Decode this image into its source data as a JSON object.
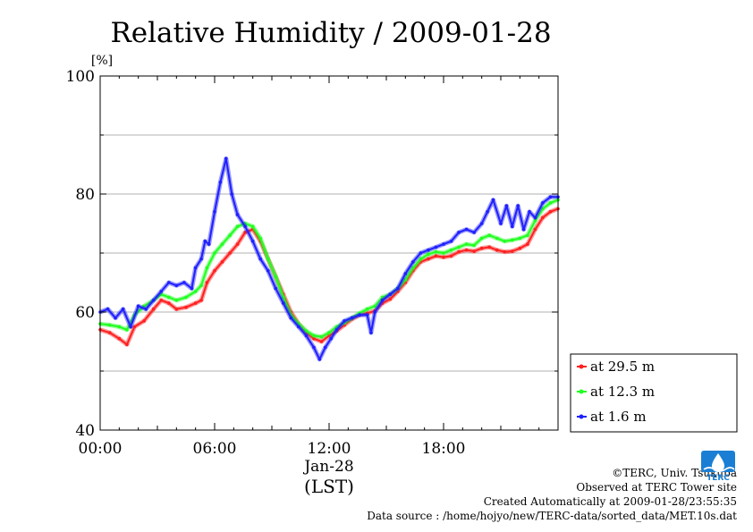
{
  "chart_data": {
    "type": "line",
    "title": "Relative Humidity / 2009-01-28",
    "ylabel": "[%]",
    "xlabel": "(LST)",
    "date_label": "Jan-28",
    "ylim": [
      40,
      100
    ],
    "xlim_hours": [
      0,
      24
    ],
    "yticks": [
      "40",
      "60",
      "80",
      "100"
    ],
    "xticks": [
      "00:00",
      "06:00",
      "12:00",
      "18:00"
    ],
    "grid": true,
    "legend_position": "right-bottom",
    "series": [
      {
        "name": "at 29.5 m",
        "color": "#ff2020",
        "x": [
          0,
          0.5,
          1.0,
          1.4,
          1.8,
          2.3,
          2.8,
          3.2,
          3.6,
          4.0,
          4.5,
          5.0,
          5.3,
          5.6,
          6.0,
          6.4,
          6.8,
          7.2,
          7.6,
          8.0,
          8.4,
          8.8,
          9.2,
          9.6,
          10.0,
          10.4,
          10.8,
          11.2,
          11.6,
          12.0,
          12.4,
          12.8,
          13.2,
          13.6,
          14.0,
          14.4,
          14.8,
          15.2,
          15.6,
          16.0,
          16.4,
          16.8,
          17.2,
          17.6,
          18.0,
          18.4,
          18.8,
          19.2,
          19.6,
          20.0,
          20.4,
          20.8,
          21.2,
          21.6,
          22.0,
          22.4,
          22.8,
          23.2,
          23.6,
          24.0
        ],
        "y": [
          57,
          56.5,
          55.5,
          54.5,
          57.5,
          58.5,
          60.5,
          62,
          61.5,
          60.5,
          60.8,
          61.5,
          62,
          65,
          67,
          68.5,
          70,
          71.5,
          73.5,
          74,
          72,
          69,
          66,
          63,
          60,
          58,
          56.5,
          55.5,
          55,
          56,
          56.8,
          57.8,
          58.8,
          59.5,
          59.8,
          60.2,
          61.5,
          62.2,
          63.5,
          65,
          67,
          68.5,
          69,
          69.5,
          69.3,
          69.5,
          70.2,
          70.5,
          70.3,
          70.8,
          71,
          70.5,
          70.2,
          70.3,
          70.8,
          71.5,
          74,
          76,
          77,
          77.5
        ]
      },
      {
        "name": "at 12.3 m",
        "color": "#20ff20",
        "x": [
          0,
          0.5,
          1.0,
          1.4,
          1.8,
          2.3,
          2.8,
          3.2,
          3.6,
          4.0,
          4.5,
          5.0,
          5.3,
          5.6,
          6.0,
          6.4,
          6.8,
          7.2,
          7.6,
          8.0,
          8.4,
          8.8,
          9.2,
          9.6,
          10.0,
          10.4,
          10.8,
          11.2,
          11.6,
          12.0,
          12.4,
          12.8,
          13.2,
          13.6,
          14.0,
          14.4,
          14.8,
          15.2,
          15.6,
          16.0,
          16.4,
          16.8,
          17.2,
          17.6,
          18.0,
          18.4,
          18.8,
          19.2,
          19.6,
          20.0,
          20.4,
          20.8,
          21.2,
          21.6,
          22.0,
          22.4,
          22.8,
          23.2,
          23.6,
          24.0
        ],
        "y": [
          58,
          57.8,
          57.5,
          57,
          59.5,
          61,
          62,
          63,
          62.5,
          62,
          62.5,
          63.5,
          64.5,
          67.5,
          70,
          71.5,
          73,
          74.5,
          75,
          74.5,
          72.5,
          69,
          66,
          62.5,
          59.5,
          58,
          56.8,
          56,
          55.8,
          56.5,
          57.5,
          58.2,
          59,
          59.8,
          60.5,
          61,
          62.5,
          63,
          64,
          65.5,
          67.5,
          69,
          69.8,
          70.2,
          70,
          70.5,
          71,
          71.5,
          71.3,
          72.5,
          73,
          72.5,
          72,
          72.2,
          72.5,
          73,
          75.5,
          77.5,
          78.5,
          79
        ]
      },
      {
        "name": "at 1.6 m",
        "color": "#2020ff",
        "x": [
          0,
          0.4,
          0.8,
          1.2,
          1.6,
          2.0,
          2.4,
          2.8,
          3.2,
          3.6,
          4.0,
          4.4,
          4.8,
          5.0,
          5.3,
          5.5,
          5.7,
          6.0,
          6.3,
          6.6,
          6.9,
          7.2,
          7.6,
          8.0,
          8.4,
          8.8,
          9.2,
          9.6,
          10.0,
          10.4,
          10.8,
          11.2,
          11.5,
          11.8,
          12.1,
          12.4,
          12.8,
          13.2,
          13.6,
          14.0,
          14.2,
          14.4,
          14.8,
          15.2,
          15.6,
          16.0,
          16.4,
          16.8,
          17.2,
          17.6,
          18.0,
          18.4,
          18.8,
          19.2,
          19.6,
          20.0,
          20.3,
          20.6,
          21.0,
          21.3,
          21.6,
          21.9,
          22.2,
          22.5,
          22.8,
          23.2,
          23.6,
          24.0
        ],
        "y": [
          60,
          60.5,
          59,
          60.5,
          57.5,
          61,
          60.5,
          62,
          63.5,
          65,
          64.5,
          65,
          64,
          67.5,
          69,
          72,
          71.5,
          77,
          82,
          86,
          80,
          76.5,
          74.5,
          72,
          69,
          67,
          64,
          61.5,
          59,
          57.5,
          56,
          54,
          52,
          54,
          55.5,
          57,
          58.5,
          59,
          59.5,
          59.5,
          56.5,
          60,
          62,
          63,
          64,
          66.5,
          68.5,
          70,
          70.5,
          71,
          71.5,
          72,
          73.5,
          74,
          73.5,
          75,
          77,
          79,
          75,
          78,
          74.5,
          78,
          74,
          77,
          76,
          78.5,
          79.5,
          79.5
        ]
      }
    ]
  },
  "credits": {
    "copyright": "©TERC, Univ. Tsukuba",
    "site": "Observed at TERC Tower site",
    "created": "Created Automatically at 2009-01-28/23:55:35",
    "source": "Data source : /home/hojyo/new/TERC-data/sorted_data/MET.10s.dat"
  },
  "logo": {
    "text": "TERC",
    "color": "#1a7fd4",
    "icon": "terc-water-drop-icon"
  }
}
